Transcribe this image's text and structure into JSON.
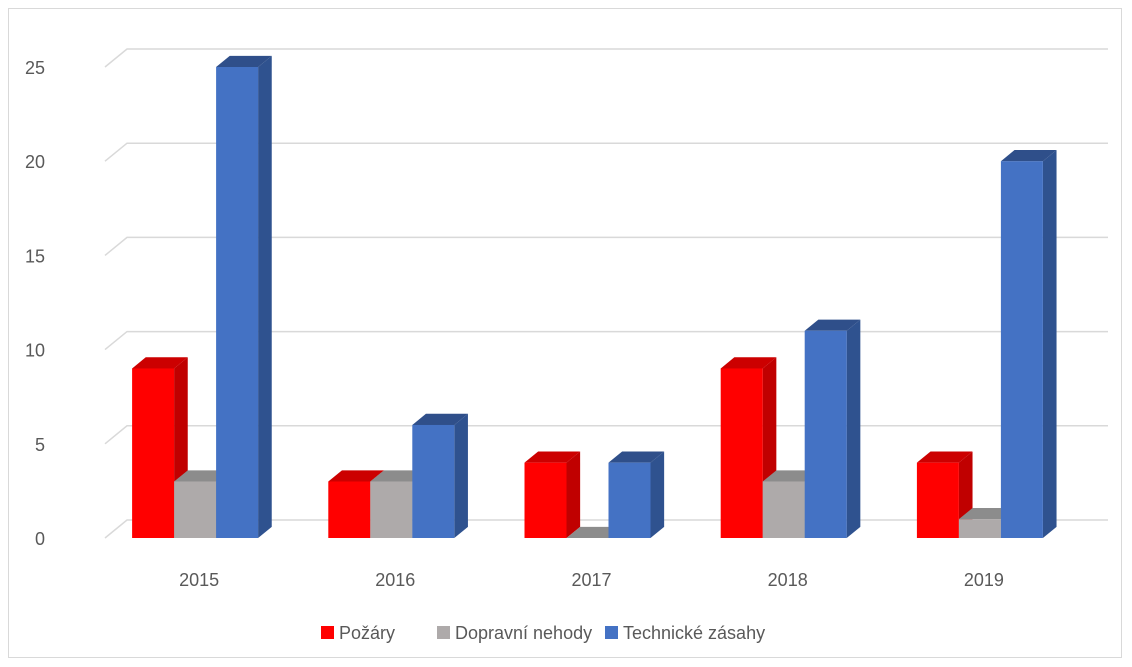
{
  "chart_data": {
    "type": "bar",
    "variant": "3d-clustered-column",
    "categories": [
      "2015",
      "2016",
      "2017",
      "2018",
      "2019"
    ],
    "series": [
      {
        "name": "Požáry",
        "values": [
          9,
          3,
          4,
          9,
          4
        ],
        "color": "#ff0000",
        "side": "#c00000",
        "top": "#cc0000"
      },
      {
        "name": "Dopravní nehody",
        "values": [
          3,
          3,
          0,
          3,
          1
        ],
        "color": "#aeaaaa",
        "side": "#7f7f7f",
        "top": "#8c8c8c"
      },
      {
        "name": "Technické zásahy",
        "values": [
          25,
          6,
          4,
          11,
          20
        ],
        "color": "#4472c4",
        "side": "#2f528f",
        "top": "#2f4f8a"
      }
    ],
    "y_ticks": [
      "0",
      "5",
      "10",
      "15",
      "20",
      "25"
    ],
    "ylim": [
      0,
      25
    ],
    "grid": true,
    "legend": "bottom",
    "title": "",
    "xlabel": "",
    "ylabel": ""
  }
}
